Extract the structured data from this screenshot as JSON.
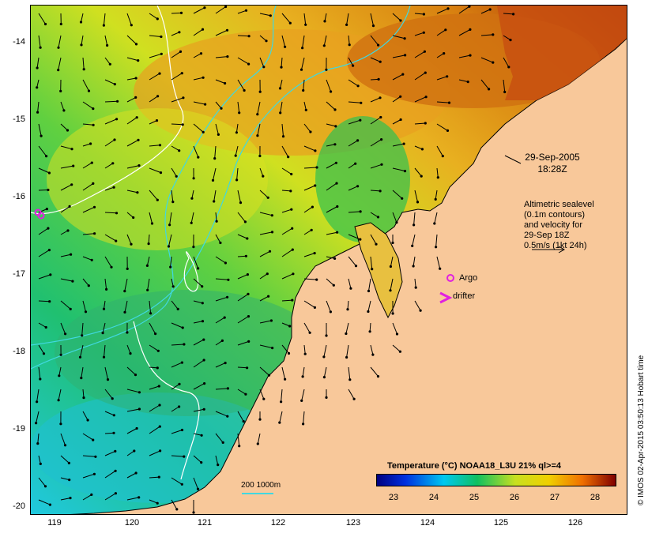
{
  "map": {
    "date": "29-Sep-2005",
    "time": "18:28Z",
    "altimetry_note": [
      "Altimetric sealevel",
      "(0.1m contours)",
      "and velocity for",
      "29-Sep 18Z",
      "0.5m/s (1kt 24h)"
    ],
    "argo_label": "Argo",
    "drifter_label": "drifter",
    "contour_legend": "200  1000m",
    "credit": "© IMOS 02-Apr-2015 03:50:13 Hobart time",
    "lat_labels": [
      "-14",
      "-15",
      "-16",
      "-17",
      "-18",
      "-19",
      "-20"
    ],
    "lon_labels": [
      "119",
      "120",
      "121",
      "122",
      "123",
      "124",
      "125",
      "126"
    ],
    "colors": {
      "land": "#f8c89a",
      "contour": "#40d8e0",
      "marker": "#e020e0"
    }
  },
  "colorbar": {
    "title": "Temperature (°C) NOAA18_L3U 21% ql>=4",
    "ticks": [
      "23",
      "24",
      "25",
      "26",
      "27",
      "28"
    ]
  }
}
